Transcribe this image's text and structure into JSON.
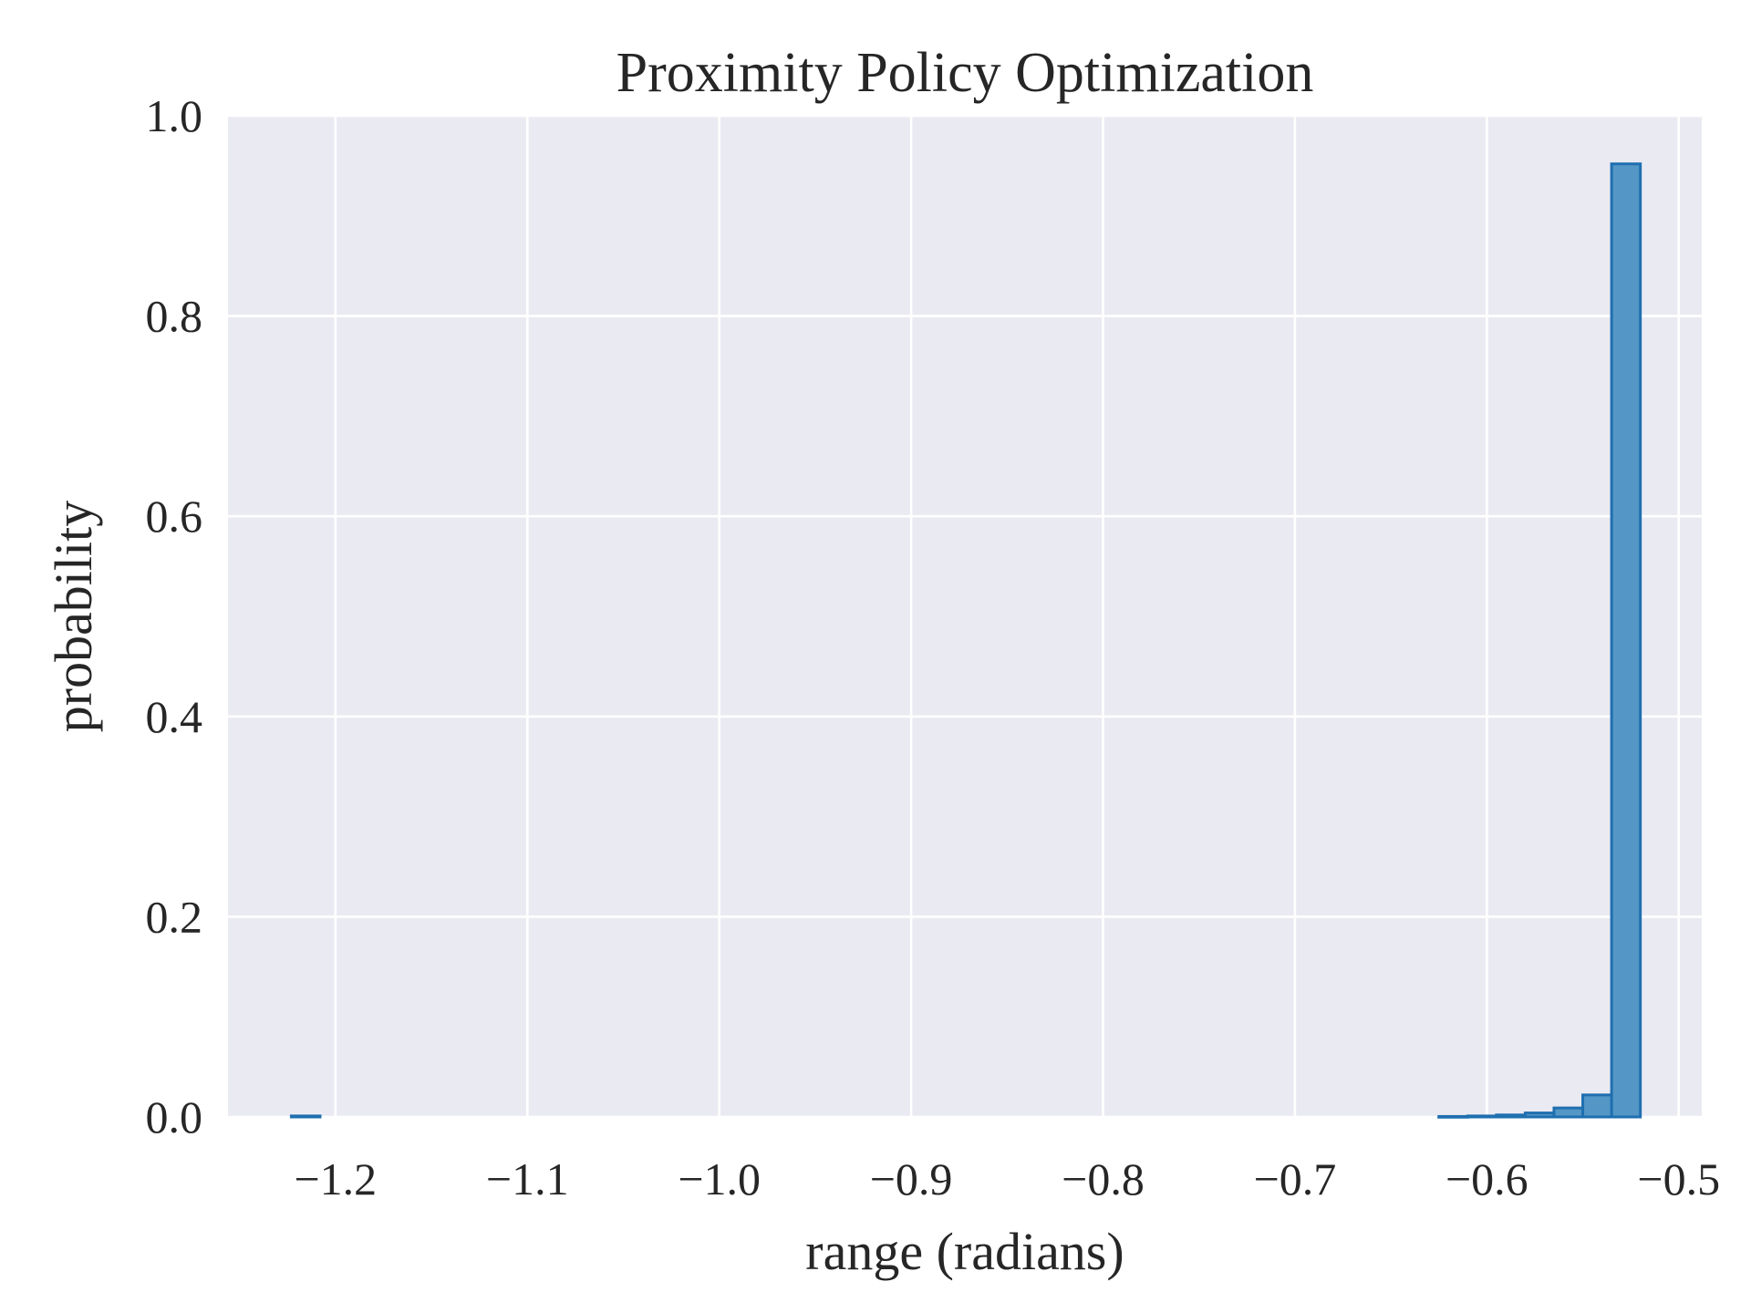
{
  "chart_data": {
    "type": "histogram",
    "title": "Proximity Policy Optimization",
    "xlabel": "range (radians)",
    "ylabel": "probability",
    "xlim": [
      -1.256,
      -0.488
    ],
    "ylim": [
      0.0,
      1.0
    ],
    "x_ticks": [
      -1.2,
      -1.1,
      -1.0,
      -0.9,
      -0.8,
      -0.7,
      -0.6,
      -0.5
    ],
    "x_tick_labels": [
      "−1.2",
      "−1.1",
      "−1.0",
      "−0.9",
      "−0.8",
      "−0.7",
      "−0.6",
      "−0.5"
    ],
    "y_ticks": [
      0.0,
      0.2,
      0.4,
      0.6,
      0.8,
      1.0
    ],
    "y_tick_labels": [
      "0.0",
      "0.2",
      "0.4",
      "0.6",
      "0.8",
      "1.0"
    ],
    "grid": true,
    "bins": [
      {
        "x0": -1.223,
        "x1": -1.208,
        "value": 0.001
      },
      {
        "x0": -0.625,
        "x1": -0.61,
        "value": 0.0005
      },
      {
        "x0": -0.61,
        "x1": -0.595,
        "value": 0.001
      },
      {
        "x0": -0.595,
        "x1": -0.58,
        "value": 0.002
      },
      {
        "x0": -0.58,
        "x1": -0.565,
        "value": 0.004
      },
      {
        "x0": -0.565,
        "x1": -0.55,
        "value": 0.009
      },
      {
        "x0": -0.55,
        "x1": -0.535,
        "value": 0.022
      },
      {
        "x0": -0.535,
        "x1": -0.52,
        "value": 0.952
      }
    ],
    "colors": {
      "plot_background": "#eaeaf2",
      "grid": "#ffffff",
      "bar_fill": "#5497c6",
      "bar_edge": "#1f6fb0"
    }
  }
}
